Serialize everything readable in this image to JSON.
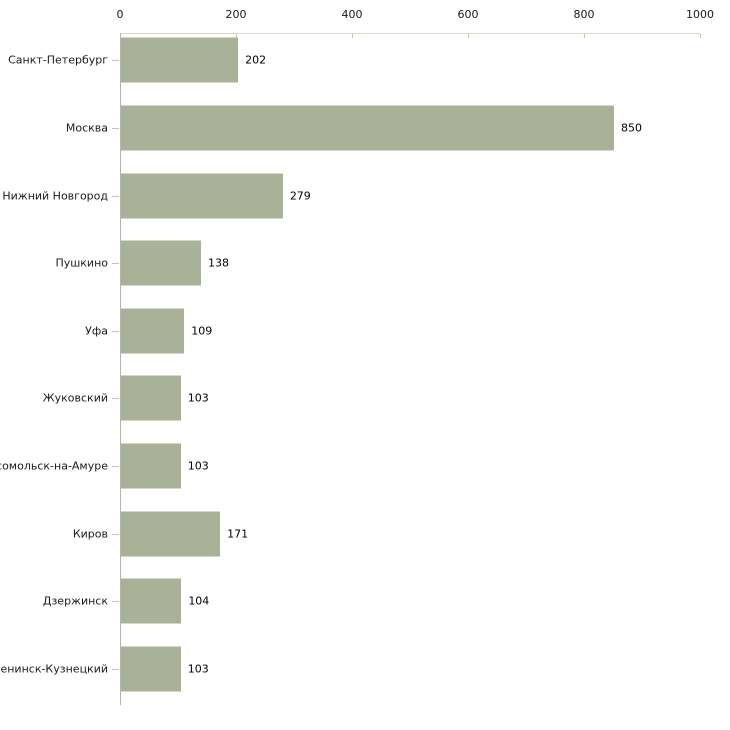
{
  "chart_data": {
    "type": "bar",
    "orientation": "horizontal",
    "title": "",
    "xlabel": "",
    "ylabel": "",
    "categories": [
      "Санкт-Петербург",
      "Москва",
      "Нижний Новгород",
      "Пушкино",
      "Уфа",
      "Жуковский",
      "Комсомольск-на-Амуре",
      "Киров",
      "Дзержинск",
      "Ленинск-Кузнецкий"
    ],
    "values": [
      202,
      850,
      279,
      138,
      109,
      103,
      103,
      171,
      104,
      103
    ],
    "value_labels": [
      "202",
      "850",
      "279",
      "138",
      "109",
      "103",
      "103",
      "171",
      "104",
      "103"
    ],
    "xlim": [
      0,
      1000
    ],
    "x_ticks": [
      "0",
      "200",
      "400",
      "600",
      "800",
      "1000"
    ],
    "x_tick_values": [
      0,
      200,
      400,
      600,
      800,
      1000
    ],
    "grid": false,
    "legend": null,
    "colors": {
      "bar_fill": "#a9b197",
      "top_axis_line": "#d8d8c8",
      "top_axis_tick": "#c9c9a0",
      "left_axis_line": "#b4b4b4",
      "category_tick": "#c9c9a0",
      "text": "#000000",
      "background": "#ffffff"
    }
  }
}
